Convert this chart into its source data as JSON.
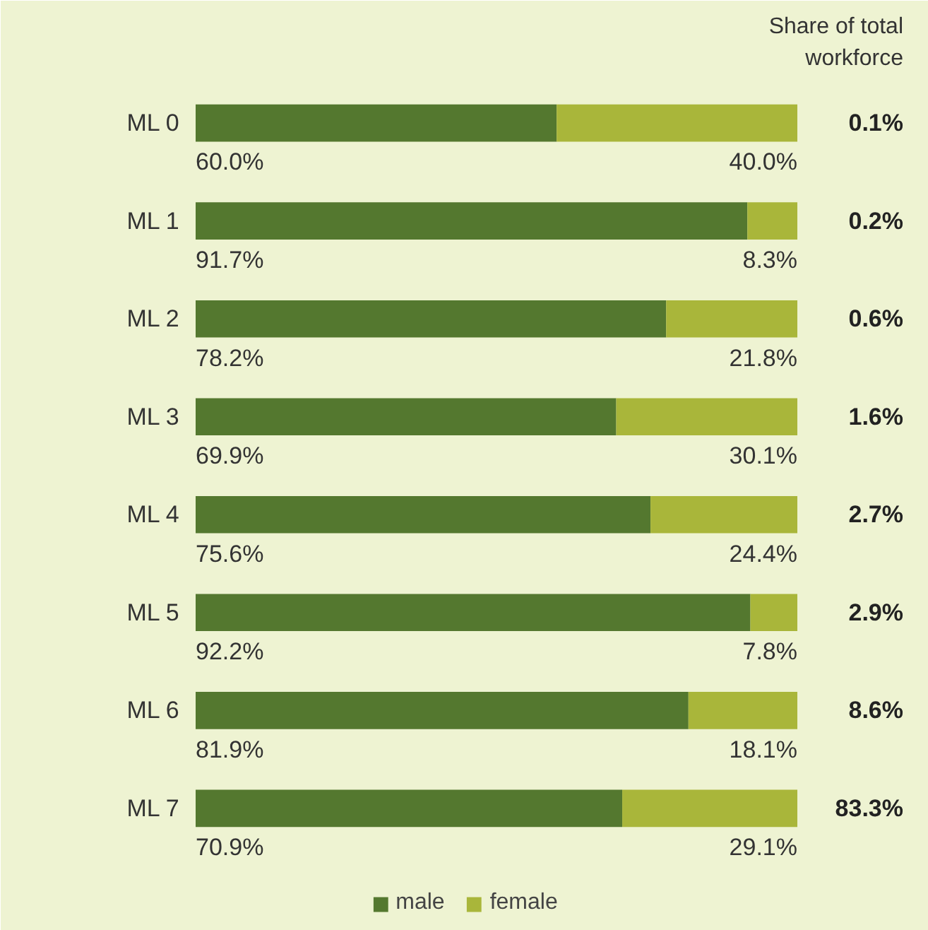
{
  "chart_data": {
    "type": "bar",
    "orientation": "horizontal",
    "stacked": true,
    "legend": "bottom",
    "categories": [
      "ML 0",
      "ML 1",
      "ML 2",
      "ML 3",
      "ML 4",
      "ML 5",
      "ML 6",
      "ML 7"
    ],
    "series": [
      {
        "name": "male",
        "color": "#54782f",
        "values": [
          60.0,
          91.7,
          78.2,
          69.9,
          75.6,
          92.2,
          81.9,
          70.9
        ],
        "value_labels": [
          "60.0%",
          "91.7%",
          "78.2%",
          "69.9%",
          "75.6%",
          "92.2%",
          "81.9%",
          "70.9%"
        ]
      },
      {
        "name": "female",
        "color": "#a9b63a",
        "values": [
          40.0,
          8.3,
          21.8,
          30.1,
          24.4,
          7.8,
          18.1,
          29.1
        ],
        "value_labels": [
          "40.0%",
          "8.3%",
          "21.8%",
          "30.1%",
          "24.4%",
          "7.8%",
          "18.1%",
          "29.1%"
        ]
      }
    ],
    "annotations": [
      "Share of total workforce",
      "0.1%",
      "0.2%",
      "0.6%",
      "1.6%",
      "2.7%",
      "2.9%",
      "8.6%",
      "83.3%"
    ]
  }
}
